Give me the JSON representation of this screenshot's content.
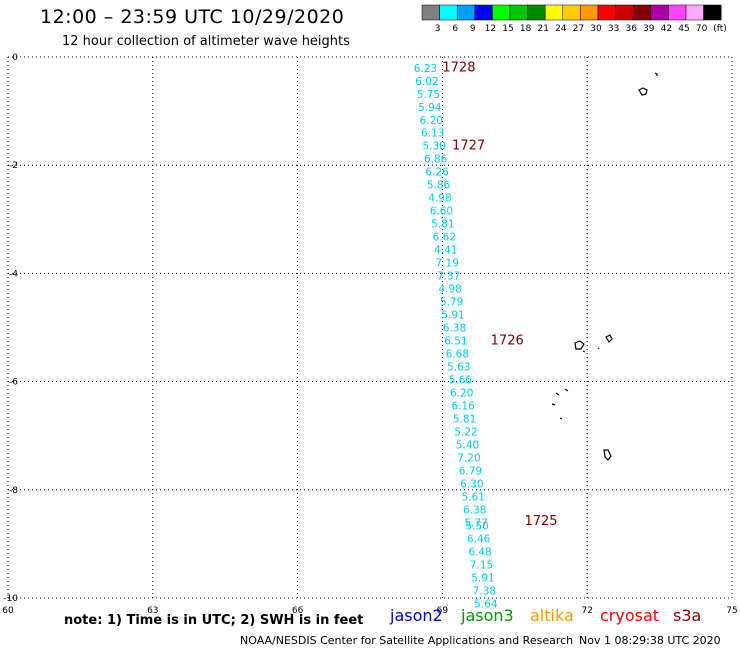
{
  "header": {
    "title": "12:00 – 23:59 UTC 10/29/2020",
    "subtitle": "12 hour collection of altimeter wave heights"
  },
  "legend": {
    "unit": "(ft)",
    "bins": [
      {
        "label": "3",
        "color": "#808080"
      },
      {
        "label": "6",
        "color": "#00ffff"
      },
      {
        "label": "9",
        "color": "#00a0ff"
      },
      {
        "label": "12",
        "color": "#0000ff"
      },
      {
        "label": "15",
        "color": "#00ff00"
      },
      {
        "label": "18",
        "color": "#00c800"
      },
      {
        "label": "21",
        "color": "#008800"
      },
      {
        "label": "24",
        "color": "#ffff00"
      },
      {
        "label": "27",
        "color": "#ffcc00"
      },
      {
        "label": "30",
        "color": "#ff9900"
      },
      {
        "label": "33",
        "color": "#ff0000"
      },
      {
        "label": "36",
        "color": "#cc0000"
      },
      {
        "label": "39",
        "color": "#880000"
      },
      {
        "label": "42",
        "color": "#aa00aa"
      },
      {
        "label": "45",
        "color": "#ff44ff"
      },
      {
        "label": "70",
        "color": "#ffaaff"
      },
      {
        "label": "",
        "color": "#000000"
      }
    ]
  },
  "map": {
    "lon_range": [
      60,
      75
    ],
    "lat_range": [
      -10,
      0
    ],
    "x_ticks": [
      "60",
      "63",
      "66",
      "69",
      "72",
      "75"
    ],
    "y_ticks": [
      "0",
      "-2",
      "-4",
      "-6",
      "-8",
      "-10"
    ],
    "grid_color": "#000000",
    "track_color": "#00ccee",
    "time_color": "#800000",
    "track": [
      {
        "lon": 68.65,
        "lat": -0.2,
        "swh": "6.23"
      },
      {
        "lon": 68.68,
        "lat": -0.44,
        "swh": "6.02"
      },
      {
        "lon": 68.71,
        "lat": -0.68,
        "swh": "5.75"
      },
      {
        "lon": 68.74,
        "lat": -0.92,
        "swh": "5.94"
      },
      {
        "lon": 68.77,
        "lat": -1.16,
        "swh": "6.20"
      },
      {
        "lon": 68.8,
        "lat": -1.4,
        "swh": "6.13"
      },
      {
        "lon": 68.83,
        "lat": -1.64,
        "swh": "5.30"
      },
      {
        "lon": 68.86,
        "lat": -1.88,
        "swh": "6.86"
      },
      {
        "lon": 68.89,
        "lat": -2.12,
        "swh": "6.26"
      },
      {
        "lon": 68.92,
        "lat": -2.36,
        "swh": "5.86"
      },
      {
        "lon": 68.95,
        "lat": -2.6,
        "swh": "4.98"
      },
      {
        "lon": 68.98,
        "lat": -2.84,
        "swh": "6.60"
      },
      {
        "lon": 69.01,
        "lat": -3.08,
        "swh": "5.81"
      },
      {
        "lon": 69.04,
        "lat": -3.32,
        "swh": "6.62"
      },
      {
        "lon": 69.07,
        "lat": -3.56,
        "swh": "4.41"
      },
      {
        "lon": 69.1,
        "lat": -3.8,
        "swh": "7.19"
      },
      {
        "lon": 69.13,
        "lat": -4.04,
        "swh": "7.37"
      },
      {
        "lon": 69.16,
        "lat": -4.28,
        "swh": "4.98"
      },
      {
        "lon": 69.19,
        "lat": -4.52,
        "swh": "5.79"
      },
      {
        "lon": 69.22,
        "lat": -4.76,
        "swh": "5.91"
      },
      {
        "lon": 69.25,
        "lat": -5.0,
        "swh": "6.38"
      },
      {
        "lon": 69.28,
        "lat": -5.24,
        "swh": "6.51"
      },
      {
        "lon": 69.31,
        "lat": -5.48,
        "swh": "6.68"
      },
      {
        "lon": 69.34,
        "lat": -5.72,
        "swh": "5.63"
      },
      {
        "lon": 69.37,
        "lat": -5.96,
        "swh": "5.66"
      },
      {
        "lon": 69.4,
        "lat": -6.2,
        "swh": "6.20"
      },
      {
        "lon": 69.43,
        "lat": -6.44,
        "swh": "6.16"
      },
      {
        "lon": 69.46,
        "lat": -6.68,
        "swh": "5.81"
      },
      {
        "lon": 69.49,
        "lat": -6.92,
        "swh": "5.22"
      },
      {
        "lon": 69.52,
        "lat": -7.16,
        "swh": "5.40"
      },
      {
        "lon": 69.55,
        "lat": -7.4,
        "swh": "7.20"
      },
      {
        "lon": 69.58,
        "lat": -7.64,
        "swh": "6.79"
      },
      {
        "lon": 69.61,
        "lat": -7.88,
        "swh": "6.30"
      },
      {
        "lon": 69.64,
        "lat": -8.12,
        "swh": "5.61"
      },
      {
        "lon": 69.67,
        "lat": -8.36,
        "swh": "6.38"
      },
      {
        "lon": 69.7,
        "lat": -8.6,
        "swh": "5.77"
      },
      {
        "lon": 69.72,
        "lat": -8.66,
        "swh": "5.50"
      },
      {
        "lon": 69.75,
        "lat": -8.9,
        "swh": "6.46"
      },
      {
        "lon": 69.78,
        "lat": -9.14,
        "swh": "6.48"
      },
      {
        "lon": 69.81,
        "lat": -9.38,
        "swh": "7.15"
      },
      {
        "lon": 69.84,
        "lat": -9.62,
        "swh": "5.91"
      },
      {
        "lon": 69.87,
        "lat": -9.86,
        "swh": "7.38"
      },
      {
        "lon": 69.9,
        "lat": -10.1,
        "swh": "5.64"
      }
    ],
    "time_labels": [
      {
        "lon": 69.0,
        "lat": -0.18,
        "text": "1728"
      },
      {
        "lon": 69.2,
        "lat": -1.62,
        "text": "1727"
      },
      {
        "lon": 70.0,
        "lat": -5.22,
        "text": "1726"
      },
      {
        "lon": 70.7,
        "lat": -8.56,
        "text": "1725"
      }
    ]
  },
  "note": "note: 1) Time is in UTC; 2) SWH is in feet",
  "satellites": [
    {
      "name": "jason2",
      "color": "#0000cc"
    },
    {
      "name": "jason3",
      "color": "#009900"
    },
    {
      "name": "altika",
      "color": "#ff9900"
    },
    {
      "name": "cryosat",
      "color": "#ff0000"
    },
    {
      "name": "s3a",
      "color": "#880000"
    }
  ],
  "footer": {
    "credit": "NOAA/NESDIS Center for Satellite Applications and Research",
    "timestamp": "Nov  1 08:29:38 UTC 2020"
  }
}
